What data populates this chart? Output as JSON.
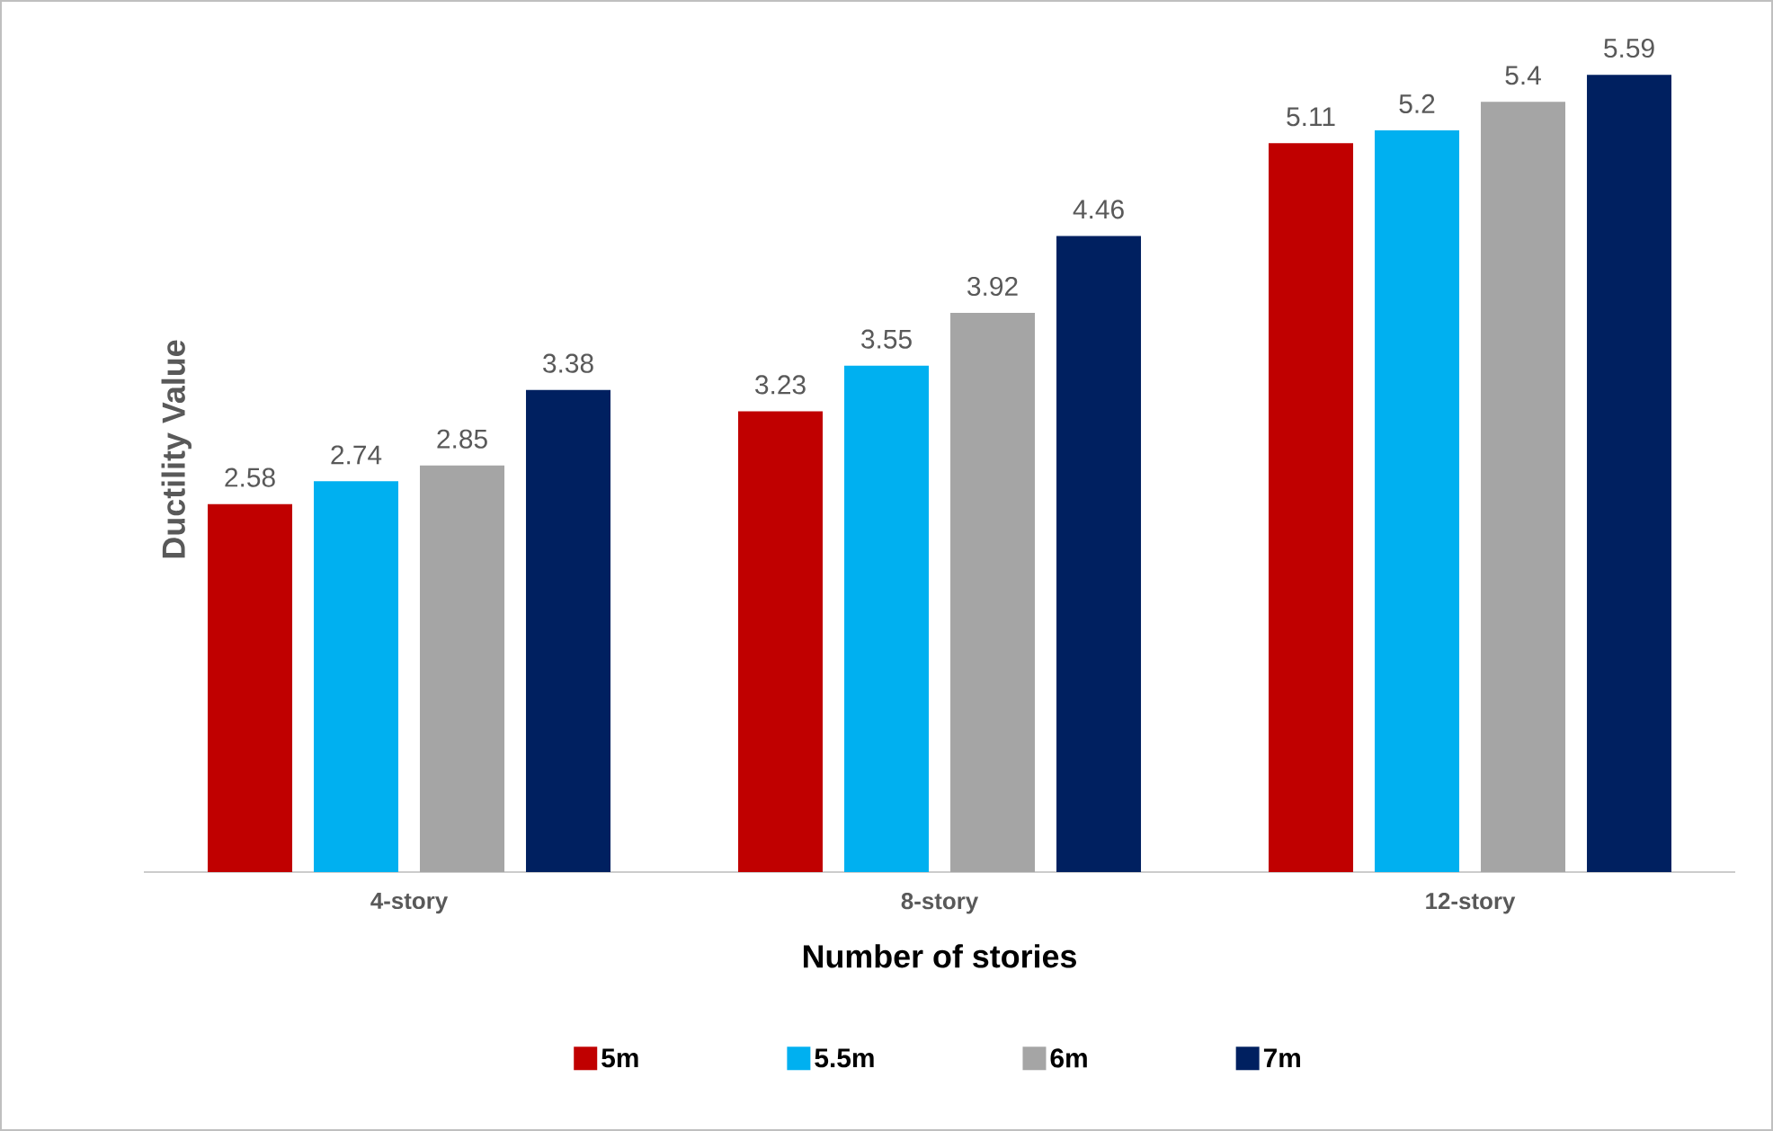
{
  "chart_data": {
    "type": "bar",
    "xlabel": "Number of stories",
    "ylabel": "Ductility Value",
    "categories": [
      "4-story",
      "8-story",
      "12-story"
    ],
    "series": [
      {
        "name": "5m",
        "color": "#c00000",
        "values": [
          2.58,
          3.23,
          5.11
        ]
      },
      {
        "name": "5.5m",
        "color": "#00b0f0",
        "values": [
          2.74,
          3.55,
          5.2
        ]
      },
      {
        "name": "6m",
        "color": "#a5a5a5",
        "values": [
          2.85,
          3.92,
          5.4
        ]
      },
      {
        "name": "7m",
        "color": "#002060",
        "values": [
          3.38,
          4.46,
          5.59
        ]
      }
    ],
    "data_labels": true,
    "legend": "bottom"
  }
}
